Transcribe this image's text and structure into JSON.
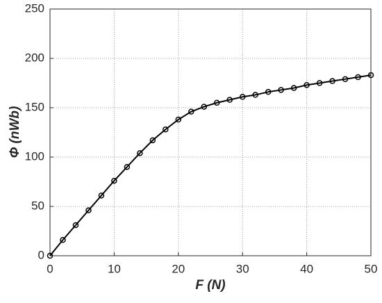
{
  "chart_data": {
    "type": "line",
    "x_label": "F (N)",
    "y_label": "Φ (nWb)",
    "x": [
      0,
      2,
      4,
      6,
      8,
      10,
      12,
      14,
      16,
      18,
      20,
      22,
      24,
      26,
      28,
      30,
      32,
      34,
      36,
      38,
      40,
      42,
      44,
      46,
      48,
      50
    ],
    "series": [
      {
        "color": "#000000",
        "values": [
          0,
          16,
          31,
          46,
          61,
          76,
          90,
          104,
          117,
          128,
          138,
          146,
          151,
          155,
          158,
          161,
          163,
          166,
          168,
          170,
          173,
          175,
          177,
          179,
          181,
          183
        ]
      }
    ],
    "xlim": [
      0,
      50
    ],
    "xticks": [
      0,
      10,
      20,
      30,
      40,
      50
    ],
    "ylim": [
      0,
      250
    ],
    "yticks": [
      0,
      50,
      100,
      150,
      200,
      250
    ],
    "grid": true
  }
}
